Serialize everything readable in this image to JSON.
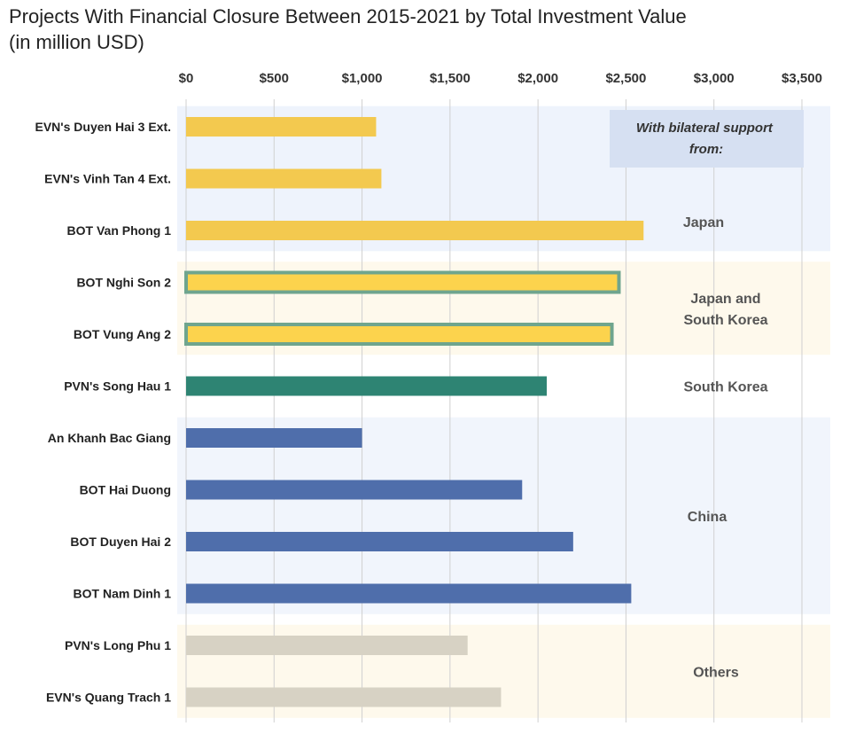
{
  "chart_data": {
    "type": "bar",
    "orientation": "horizontal",
    "title": "Projects With Financial Closure Between 2015-2021 by Total Investment Value",
    "subtitle": "(in million USD)",
    "xlim": [
      0,
      3500
    ],
    "x_ticks": [
      0,
      500,
      1000,
      1500,
      2000,
      2500,
      3000,
      3500
    ],
    "x_tick_labels": [
      "$0",
      "$500",
      "$1,000",
      "$1,500",
      "$2,000",
      "$2,500",
      "$3,000",
      "$3,500"
    ],
    "x_axis_position": "top",
    "grid": true,
    "support_header": "With bilateral support from:",
    "categories": [
      "EVN's Duyen Hai 3 Ext.",
      "EVN's Vinh Tan 4 Ext.",
      "BOT Van Phong 1",
      "BOT Nghi Son 2",
      "BOT Vung Ang 2",
      "PVN's Song Hau 1",
      "An Khanh Bac Giang",
      "BOT Hai Duong",
      "BOT Duyen Hai 2",
      "BOT Nam Dinh 1",
      "PVN's Long Phu 1",
      "EVN's Quang Trach 1"
    ],
    "values": [
      1080,
      1110,
      2600,
      2460,
      2420,
      2050,
      1000,
      1910,
      2200,
      2530,
      1600,
      1790
    ],
    "groups": [
      {
        "label_lines": [
          "Japan"
        ],
        "start": 0,
        "end": 2,
        "color": "#F3C94F",
        "outline": "",
        "band": "#EEF3FC"
      },
      {
        "label_lines": [
          "Japan and",
          "South Korea"
        ],
        "start": 3,
        "end": 4,
        "color": "#FCD34D",
        "outline": "#6FA58E",
        "band": "#FEF9EC"
      },
      {
        "label_lines": [
          "South Korea"
        ],
        "start": 5,
        "end": 5,
        "color": "#2E8473",
        "outline": "",
        "band": "#FFFFFF"
      },
      {
        "label_lines": [
          "China"
        ],
        "start": 6,
        "end": 9,
        "color": "#4F6EAB",
        "outline": "",
        "band": "#F1F5FC"
      },
      {
        "label_lines": [
          "Others"
        ],
        "start": 10,
        "end": 11,
        "color": "#D7D2C4",
        "outline": "",
        "band": "#FEF9EC"
      }
    ],
    "colors": {
      "grid": "#D0D0D0",
      "support_box": "#D6E0F2"
    }
  }
}
